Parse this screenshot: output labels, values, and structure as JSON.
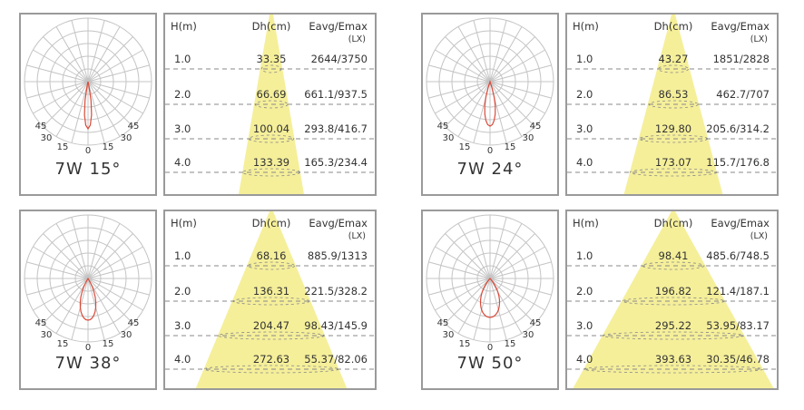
{
  "panels": [
    {
      "title": "7W 15°",
      "headers": {
        "h": "H(m)",
        "dh": "Dh(cm)",
        "eavg": "Eavg/Emax",
        "unit": "(LX)"
      },
      "rows": [
        {
          "h": "1.0",
          "dh": "33.35",
          "e": "2644/3750"
        },
        {
          "h": "2.0",
          "dh": "66.69",
          "e": "661.1/937.5"
        },
        {
          "h": "3.0",
          "dh": "100.04",
          "e": "293.8/416.7"
        },
        {
          "h": "4.0",
          "dh": "133.39",
          "e": "165.3/234.4"
        }
      ],
      "angle_labels": [
        "45",
        "30",
        "15",
        "0",
        "15",
        "30",
        "45"
      ]
    },
    {
      "title": "7W 24°",
      "headers": {
        "h": "H(m)",
        "dh": "Dh(cm)",
        "eavg": "Eavg/Emax",
        "unit": "(LX)"
      },
      "rows": [
        {
          "h": "1.0",
          "dh": "43.27",
          "e": "1851/2828"
        },
        {
          "h": "2.0",
          "dh": "86.53",
          "e": "462.7/707"
        },
        {
          "h": "3.0",
          "dh": "129.80",
          "e": "205.6/314.2"
        },
        {
          "h": "4.0",
          "dh": "173.07",
          "e": "115.7/176.8"
        }
      ],
      "angle_labels": [
        "45",
        "30",
        "15",
        "0",
        "15",
        "30",
        "45"
      ]
    },
    {
      "title": "7W 38°",
      "headers": {
        "h": "H(m)",
        "dh": "Dh(cm)",
        "eavg": "Eavg/Emax",
        "unit": "(LX)"
      },
      "rows": [
        {
          "h": "1.0",
          "dh": "68.16",
          "e": "885.9/1313"
        },
        {
          "h": "2.0",
          "dh": "136.31",
          "e": "221.5/328.2"
        },
        {
          "h": "3.0",
          "dh": "204.47",
          "e": "98.43/145.9"
        },
        {
          "h": "4.0",
          "dh": "272.63",
          "e": "55.37/82.06"
        }
      ],
      "angle_labels": [
        "45",
        "30",
        "15",
        "0",
        "15",
        "30",
        "45"
      ]
    },
    {
      "title": "7W 50°",
      "headers": {
        "h": "H(m)",
        "dh": "Dh(cm)",
        "eavg": "Eavg/Emax",
        "unit": "(LX)"
      },
      "rows": [
        {
          "h": "1.0",
          "dh": "98.41",
          "e": "485.6/748.5"
        },
        {
          "h": "2.0",
          "dh": "196.82",
          "e": "121.4/187.1"
        },
        {
          "h": "3.0",
          "dh": "295.22",
          "e": "53.95/83.17"
        },
        {
          "h": "4.0",
          "dh": "393.63",
          "e": "30.35/46.78"
        }
      ],
      "angle_labels": [
        "45",
        "30",
        "15",
        "0",
        "15",
        "30",
        "45"
      ]
    }
  ],
  "colors": {
    "beam": "#f5ef9a",
    "curve": "#d94b3a",
    "grid": "#c4c4c4",
    "border": "#9a9a9a",
    "dashed": "#8a8a8a"
  },
  "beam_angles_deg": [
    15,
    24,
    38,
    50
  ]
}
